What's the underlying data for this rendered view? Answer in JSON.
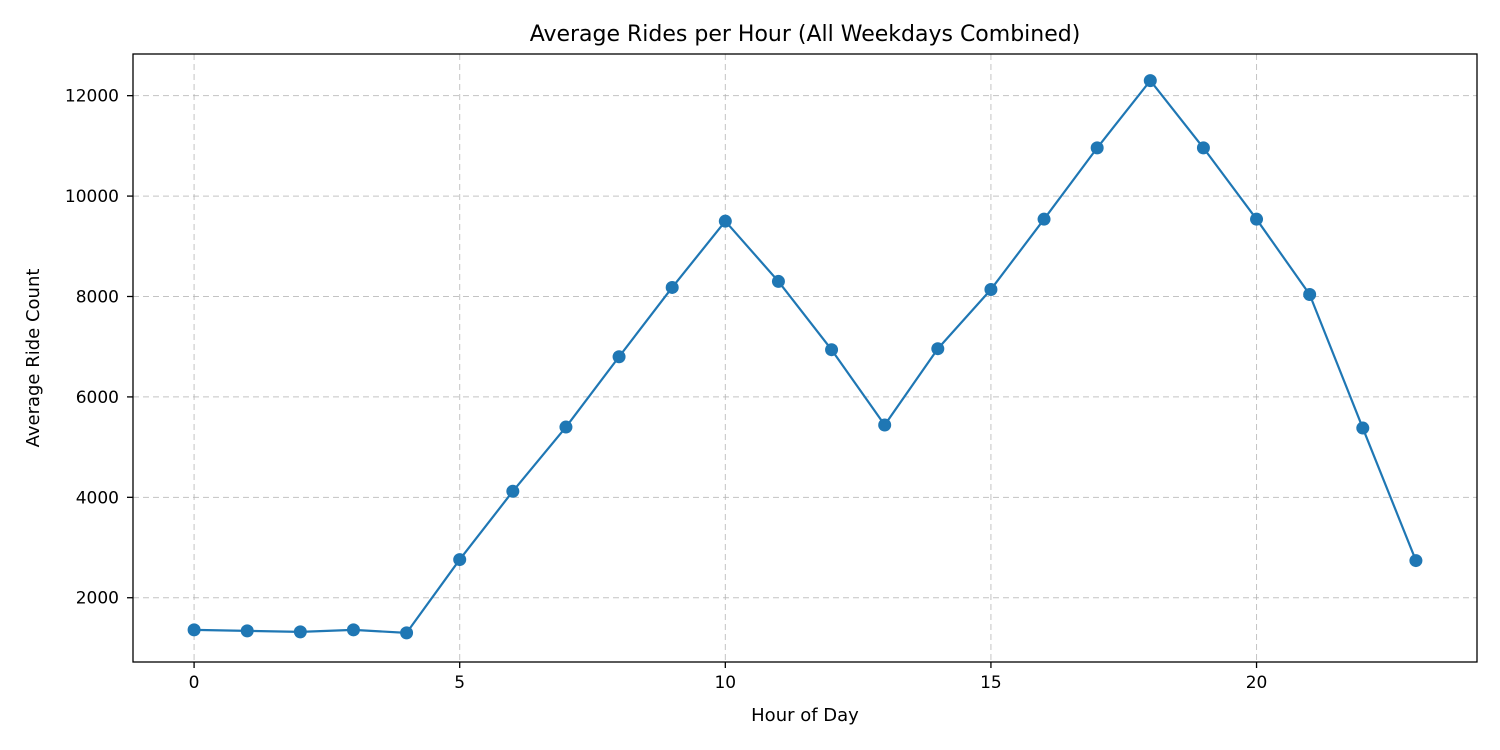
{
  "chart_data": {
    "type": "line",
    "title": "Average Rides per Hour (All Weekdays Combined)",
    "xlabel": "Hour of Day",
    "ylabel": "Average Ride Count",
    "xlim": [
      -1.15,
      24.15
    ],
    "ylim": [
      720,
      12830
    ],
    "xticks": [
      0,
      5,
      10,
      15,
      20
    ],
    "yticks": [
      2000,
      4000,
      6000,
      8000,
      10000,
      12000
    ],
    "grid": true,
    "marker": "circle",
    "series": [
      {
        "color": "#1f77b4",
        "x": [
          0,
          1,
          2,
          3,
          4,
          5,
          6,
          7,
          8,
          9,
          10,
          11,
          12,
          13,
          14,
          15,
          16,
          17,
          18,
          19,
          20,
          21,
          22,
          23
        ],
        "values": [
          1360,
          1340,
          1320,
          1360,
          1300,
          2760,
          4120,
          5400,
          6800,
          8180,
          9500,
          8300,
          6940,
          5440,
          6960,
          8140,
          9540,
          10960,
          12300,
          10960,
          9540,
          8040,
          5380,
          2740
        ]
      }
    ]
  }
}
